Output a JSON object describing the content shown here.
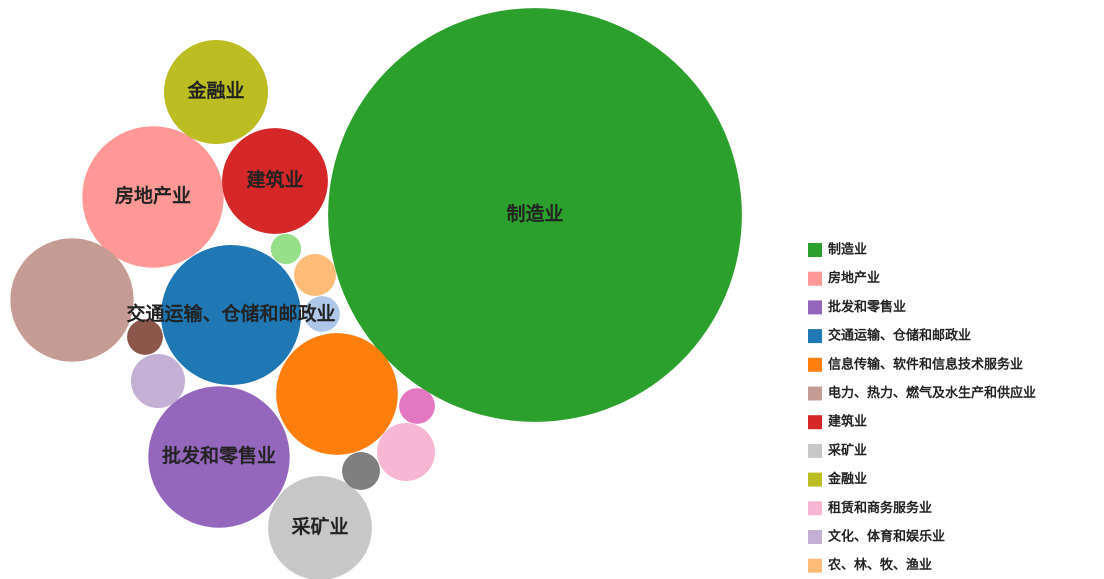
{
  "chart_data": {
    "type": "bubble",
    "series": [
      {
        "name": "制造业",
        "color": "#2ca02c",
        "value": 428,
        "labeled": true
      },
      {
        "name": "房地产业",
        "color": "#ff9896",
        "value": 50,
        "labeled": true
      },
      {
        "name": "批发和零售业",
        "color": "#9467bd",
        "value": 50,
        "labeled": true
      },
      {
        "name": "交通运输、仓储和邮政业",
        "color": "#1f77b4",
        "value": 49,
        "labeled": true
      },
      {
        "name": "信息传输、软件和信息技术服务业",
        "color": "#ff7f0e",
        "value": 37,
        "labeled": false
      },
      {
        "name": "电力、热力、燃气及水生产和供应业",
        "color": "#c49c94",
        "value": 38,
        "labeled": false
      },
      {
        "name": "建筑业",
        "color": "#d62728",
        "value": 28,
        "labeled": true
      },
      {
        "name": "采矿业",
        "color": "#c7c7c7",
        "value": 27,
        "labeled": true
      },
      {
        "name": "金融业",
        "color": "#bcbd22",
        "value": 27,
        "labeled": true
      },
      {
        "name": "租赁和商务服务业",
        "color": "#f7b6d2",
        "value": 8.4,
        "labeled": false
      },
      {
        "name": "文化、体育和娱乐业",
        "color": "#c5b0d5",
        "value": 7.3,
        "labeled": false
      },
      {
        "name": "农、林、牧、渔业",
        "color": "#ffbb78",
        "value": 4.4,
        "labeled": false
      },
      {
        "name": null,
        "color": "#98df8a",
        "value": 2.3,
        "labeled": false
      },
      {
        "name": null,
        "color": "#aec7e8",
        "value": 3.2,
        "labeled": false
      },
      {
        "name": null,
        "color": "#8c564b",
        "value": 3.2,
        "labeled": false
      },
      {
        "name": null,
        "color": "#e377c2",
        "value": 3.2,
        "labeled": false
      },
      {
        "name": null,
        "color": "#7f7f7f",
        "value": 3.6,
        "labeled": false
      }
    ],
    "legend": "right"
  }
}
